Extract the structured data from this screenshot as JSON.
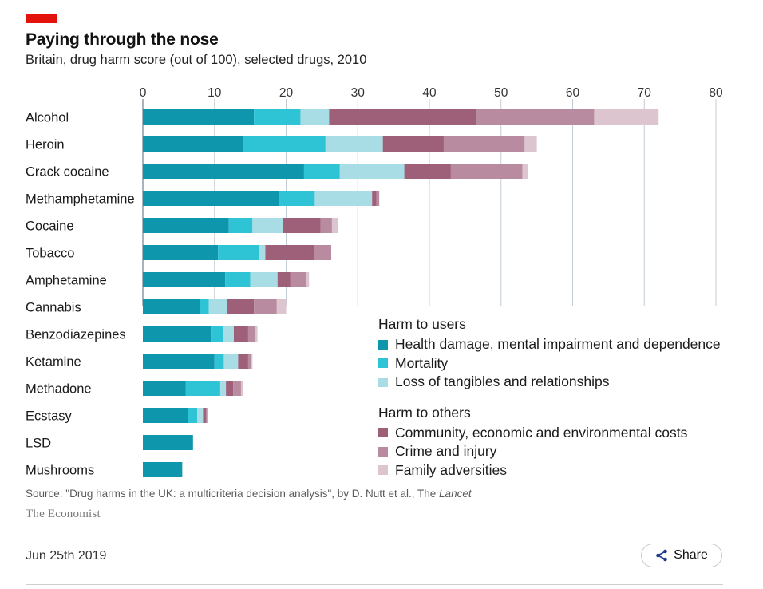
{
  "header": {
    "title": "Paying through the nose",
    "subtitle": "Britain, drug harm score (out of 100), selected drugs, 2010"
  },
  "chart_data": {
    "type": "bar",
    "orientation": "horizontal",
    "stacked": true,
    "xlim": [
      0,
      80
    ],
    "x_ticks": [
      "0",
      "10",
      "20",
      "30",
      "40",
      "50",
      "60",
      "70",
      "80"
    ],
    "x_tick_values": [
      0,
      10,
      20,
      30,
      40,
      50,
      60,
      70,
      80
    ],
    "gridlines": true,
    "legend_placement": "bottom-right",
    "categories": [
      "Alcohol",
      "Heroin",
      "Crack cocaine",
      "Methamphetamine",
      "Cocaine",
      "Tobacco",
      "Amphetamine",
      "Cannabis",
      "Benzodiazepines",
      "Ketamine",
      "Methadone",
      "Ecstasy",
      "LSD",
      "Mushrooms"
    ],
    "series": [
      {
        "name": "Health damage, mental impairment and dependence",
        "color": "#0e96ad",
        "group": "users",
        "values": [
          15.5,
          14.0,
          22.5,
          19.0,
          12.0,
          10.5,
          11.5,
          8.0,
          9.5,
          10.0,
          6.0,
          6.3,
          7.0,
          5.5
        ]
      },
      {
        "name": "Mortality",
        "color": "#2ec4d6",
        "group": "users",
        "values": [
          6.5,
          11.5,
          5.0,
          5.0,
          3.3,
          5.8,
          3.5,
          1.2,
          1.7,
          1.3,
          4.8,
          1.3,
          0.0,
          0.0
        ]
      },
      {
        "name": "Loss of tangibles and relationships",
        "color": "#a8dde5",
        "group": "users",
        "values": [
          4.0,
          8.0,
          9.0,
          8.0,
          4.2,
          0.8,
          3.8,
          2.5,
          1.5,
          2.0,
          0.8,
          0.8,
          0.0,
          0.0
        ]
      },
      {
        "name": "Community, economic and environmental costs",
        "color": "#9e5f79",
        "group": "others",
        "values": [
          20.5,
          8.5,
          6.5,
          0.6,
          5.3,
          6.8,
          1.8,
          3.8,
          2.0,
          1.4,
          1.0,
          0.4,
          0.0,
          0.0
        ]
      },
      {
        "name": "Crime and injury",
        "color": "#b98ba0",
        "group": "others",
        "values": [
          16.5,
          11.3,
          10.0,
          0.4,
          1.6,
          2.4,
          2.2,
          3.2,
          0.9,
          0.4,
          1.1,
          0.2,
          0.0,
          0.0
        ]
      },
      {
        "name": "Family adversities",
        "color": "#dcc5cf",
        "group": "others",
        "values": [
          9.0,
          1.7,
          0.8,
          0.0,
          0.9,
          0.0,
          0.4,
          1.3,
          0.4,
          0.2,
          0.3,
          0.0,
          0.0,
          0.0
        ]
      }
    ]
  },
  "legend": {
    "users_heading": "Harm to users",
    "others_heading": "Harm to others",
    "users": [
      {
        "label": "Health damage, mental impairment and dependence",
        "color": "#0e96ad"
      },
      {
        "label": "Mortality",
        "color": "#2ec4d6"
      },
      {
        "label": "Loss of tangibles and relationships",
        "color": "#a8dde5"
      }
    ],
    "others": [
      {
        "label": "Community, economic and environmental costs",
        "color": "#9e5f79"
      },
      {
        "label": "Crime and injury",
        "color": "#b98ba0"
      },
      {
        "label": "Family adversities",
        "color": "#dcc5cf"
      }
    ]
  },
  "footer": {
    "source_prefix": "Source: \"Drug harms in the UK: a multicriteria decision analysis\", by D. Nutt et al., The ",
    "source_journal": "Lancet",
    "brand": "The Economist",
    "date": "Jun 25th 2019",
    "share_label": "Share",
    "share_icon": "share-icon"
  }
}
